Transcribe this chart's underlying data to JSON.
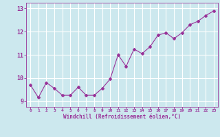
{
  "x": [
    0,
    1,
    2,
    3,
    4,
    5,
    6,
    7,
    8,
    9,
    10,
    11,
    12,
    13,
    14,
    15,
    16,
    17,
    18,
    19,
    20,
    21,
    22,
    23
  ],
  "y": [
    9.7,
    9.15,
    9.8,
    9.55,
    9.25,
    9.25,
    9.6,
    9.25,
    9.25,
    9.55,
    9.95,
    11.0,
    10.5,
    11.25,
    11.05,
    11.35,
    11.85,
    11.95,
    11.7,
    11.95,
    12.3,
    12.45,
    12.7,
    12.9
  ],
  "line_color": "#993399",
  "marker": "D",
  "marker_size": 2.0,
  "bg_color": "#cce8ee",
  "grid_color": "#ffffff",
  "xlabel": "Windchill (Refroidissement éolien,°C)",
  "xlabel_color": "#993399",
  "tick_color": "#993399",
  "ylim": [
    8.75,
    13.25
  ],
  "xlim": [
    -0.5,
    23.5
  ],
  "yticks": [
    9,
    10,
    11,
    12,
    13
  ],
  "xticks": [
    0,
    1,
    2,
    3,
    4,
    5,
    6,
    7,
    8,
    9,
    10,
    11,
    12,
    13,
    14,
    15,
    16,
    17,
    18,
    19,
    20,
    21,
    22,
    23
  ]
}
